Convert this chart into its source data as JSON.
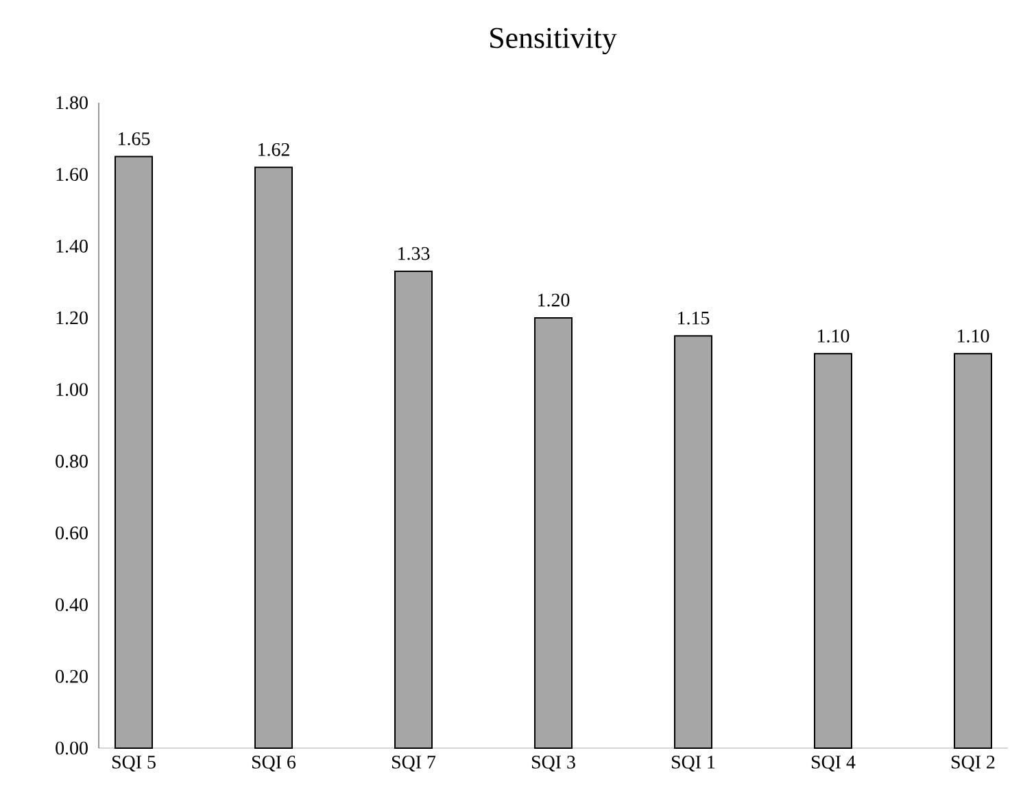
{
  "chart_data": {
    "type": "bar",
    "title": "Sensitivity",
    "categories": [
      "SQI 5",
      "SQI 6",
      "SQI 7",
      "SQI 3",
      "SQI 1",
      "SQI 4",
      "SQI 2"
    ],
    "values": [
      1.65,
      1.62,
      1.33,
      1.2,
      1.15,
      1.1,
      1.1
    ],
    "value_labels": [
      "1.65",
      "1.62",
      "1.33",
      "1.20",
      "1.15",
      "1.10",
      "1.10"
    ],
    "color": "#a6a6a6",
    "ylim": [
      0,
      1.8
    ],
    "yticks": [
      {
        "value": 0,
        "label": "0.00"
      },
      {
        "value": 0.2,
        "label": "0.20"
      },
      {
        "value": 0.4,
        "label": "0.40"
      },
      {
        "value": 0.6,
        "label": "0.60"
      },
      {
        "value": 0.8,
        "label": "0.80"
      },
      {
        "value": 1.0,
        "label": "1.00"
      },
      {
        "value": 1.2,
        "label": "1.20"
      },
      {
        "value": 1.4,
        "label": "1.40"
      },
      {
        "value": 1.6,
        "label": "1.60"
      },
      {
        "value": 1.8,
        "label": "1.80"
      }
    ]
  }
}
